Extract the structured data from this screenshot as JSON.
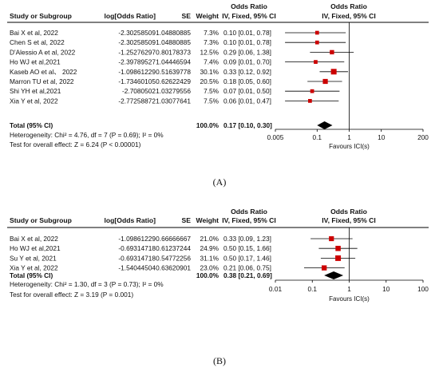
{
  "chart_data": [
    {
      "type": "forest",
      "panel_label": "(A)",
      "headers": {
        "study": "Study or Subgroup",
        "log_or": "log[Odds Ratio]",
        "se": "SE",
        "weight": "Weight",
        "or_title": "Odds Ratio",
        "or_method": "IV, Fixed, 95% CI",
        "plot_title": "Odds Ratio",
        "plot_method": "IV, Fixed, 95% CI"
      },
      "rows": [
        {
          "study": "Bai X et al, 2022",
          "log_or": "-2.30258509",
          "se": "1.04880885",
          "weight": "7.3%",
          "or_text": "0.10 [0.01, 0.78]",
          "or": 0.1,
          "lo": 0.01,
          "hi": 0.78,
          "w": 7.3
        },
        {
          "study": "Chen S et al, 2022",
          "log_or": "-2.30258509",
          "se": "1.04880885",
          "weight": "7.3%",
          "or_text": "0.10 [0.01, 0.78]",
          "or": 0.1,
          "lo": 0.01,
          "hi": 0.78,
          "w": 7.3
        },
        {
          "study": "D'Alessio A et al, 2022",
          "log_or": "-1.25276297",
          "se": "0.80178373",
          "weight": "12.5%",
          "or_text": "0.29 [0.06, 1.38]",
          "or": 0.29,
          "lo": 0.06,
          "hi": 1.38,
          "w": 12.5
        },
        {
          "study": "Ho WJ et al,2021",
          "log_or": "-2.39789527",
          "se": "1.04446594",
          "weight": "7.4%",
          "or_text": "0.09 [0.01, 0.70]",
          "or": 0.09,
          "lo": 0.01,
          "hi": 0.7,
          "w": 7.4
        },
        {
          "study": "Kaseb AO et al、 2022",
          "log_or": "-1.09861229",
          "se": "0.51639778",
          "weight": "30.1%",
          "or_text": "0.33 [0.12, 0.92]",
          "or": 0.33,
          "lo": 0.12,
          "hi": 0.92,
          "w": 30.1
        },
        {
          "study": "Marron TU et al, 2022",
          "log_or": "-1.73460105",
          "se": "0.62622429",
          "weight": "20.5%",
          "or_text": "0.18 [0.05, 0.60]",
          "or": 0.18,
          "lo": 0.05,
          "hi": 0.6,
          "w": 20.5
        },
        {
          "study": "Shi YH et al,2021",
          "log_or": "-2.7080502",
          "se": "1.03279556",
          "weight": "7.5%",
          "or_text": "0.07 [0.01, 0.50]",
          "or": 0.07,
          "lo": 0.01,
          "hi": 0.5,
          "w": 7.5
        },
        {
          "study": "Xia Y et al, 2022",
          "log_or": "-2.77258872",
          "se": "1.03077641",
          "weight": "7.5%",
          "or_text": "0.06 [0.01, 0.47]",
          "or": 0.06,
          "lo": 0.01,
          "hi": 0.47,
          "w": 7.5
        }
      ],
      "total": {
        "label": "Total (95% CI)",
        "weight": "100.0%",
        "or_text": "0.17 [0.10, 0.30]",
        "or": 0.17,
        "lo": 0.1,
        "hi": 0.3
      },
      "heterogeneity": "Heterogeneity: Chi² = 4.76, df = 7 (P = 0.69); I² = 0%",
      "overall_effect": "Test for overall effect: Z = 6.24 (P < 0.00001)",
      "x_scale": "log",
      "xlim": [
        0.005,
        200
      ],
      "xticks": [
        0.005,
        0.1,
        1,
        10,
        200
      ],
      "xtick_labels": [
        "0.005",
        "0.1",
        "1",
        "10",
        "200"
      ],
      "xlabel": "Favours ICI(s)"
    },
    {
      "type": "forest",
      "panel_label": "(B)",
      "headers": {
        "study": "Study or Subgroup",
        "log_or": "log[Odds Ratio]",
        "se": "SE",
        "weight": "Weight",
        "or_title": "Odds Ratio",
        "or_method": "IV, Fixed, 95% CI",
        "plot_title": "Odds Ratio",
        "plot_method": "IV, Fixed, 95% CI"
      },
      "rows": [
        {
          "study": "Bai X et al, 2022",
          "log_or": "-1.09861229",
          "se": "0.66666667",
          "weight": "21.0%",
          "or_text": "0.33 [0.09, 1.23]",
          "or": 0.33,
          "lo": 0.09,
          "hi": 1.23,
          "w": 21.0
        },
        {
          "study": "Ho WJ et al,2021",
          "log_or": "-0.69314718",
          "se": "0.61237244",
          "weight": "24.9%",
          "or_text": "0.50 [0.15, 1.66]",
          "or": 0.5,
          "lo": 0.15,
          "hi": 1.66,
          "w": 24.9
        },
        {
          "study": "Su Y et al, 2021",
          "log_or": "-0.69314718",
          "se": "0.54772256",
          "weight": "31.1%",
          "or_text": "0.50 [0.17, 1.46]",
          "or": 0.5,
          "lo": 0.17,
          "hi": 1.46,
          "w": 31.1
        },
        {
          "study": "Xia Y et al, 2022",
          "log_or": "-1.54044504",
          "se": "0.63620901",
          "weight": "23.0%",
          "or_text": "0.21 [0.06, 0.75]",
          "or": 0.21,
          "lo": 0.06,
          "hi": 0.75,
          "w": 23.0
        }
      ],
      "total": {
        "label": "Total (95% CI)",
        "weight": "100.0%",
        "or_text": "0.38 [0.21, 0.69]",
        "or": 0.38,
        "lo": 0.21,
        "hi": 0.69
      },
      "heterogeneity": "Heterogeneity: Chi² = 1.30, df = 3 (P = 0.73); I² = 0%",
      "overall_effect": "Test for overall effect: Z = 3.19 (P = 0.001)",
      "x_scale": "log",
      "xlim": [
        0.01,
        100
      ],
      "xticks": [
        0.01,
        0.1,
        1,
        10,
        100
      ],
      "xtick_labels": [
        "0.01",
        "0.1",
        "1",
        "10",
        "100"
      ],
      "xlabel": "Favours ICI(s)"
    }
  ],
  "colors": {
    "study_marker": "#cc0000",
    "diamond": "#000000",
    "lines": "#000000"
  }
}
